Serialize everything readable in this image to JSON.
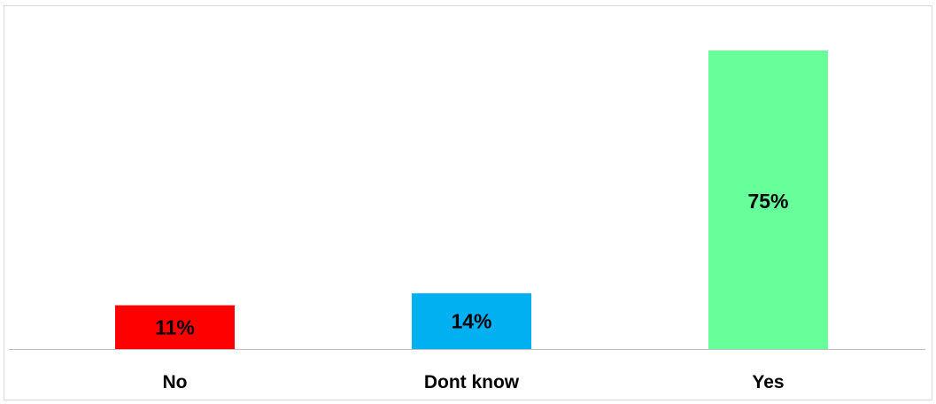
{
  "chart_data": {
    "type": "bar",
    "title": "",
    "xlabel": "",
    "ylabel": "",
    "categories": [
      "No",
      "Dont know",
      "Yes"
    ],
    "values": [
      11,
      14,
      75
    ],
    "data_labels": [
      "11%",
      "14%",
      "75%"
    ],
    "colors": [
      "#ff0000",
      "#00b0f0",
      "#66ff99"
    ],
    "ylim": [
      0,
      80
    ],
    "grid": false,
    "legend": "none",
    "axis_line_color": "#bfbfbf"
  }
}
